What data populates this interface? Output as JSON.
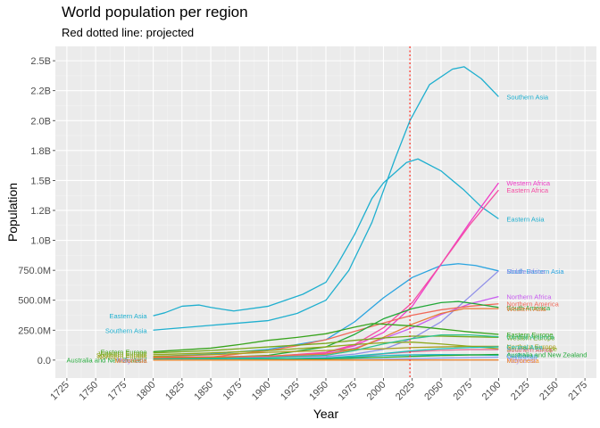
{
  "chart_data": {
    "type": "line",
    "title": "World population per region",
    "subtitle": "Red dotted line: projected",
    "xlabel": "Year",
    "ylabel": "Population",
    "xlim": [
      1715,
      2185
    ],
    "ylim": [
      -150000000,
      2620000000
    ],
    "x_ticks": [
      1725,
      1750,
      1775,
      1800,
      1825,
      1850,
      1875,
      1900,
      1925,
      1950,
      1975,
      2000,
      2025,
      2050,
      2075,
      2100,
      2125,
      2150,
      2175
    ],
    "y_ticks": [
      0,
      250000000,
      500000000,
      750000000,
      1000000000,
      1250000000,
      1500000000,
      1750000000,
      2000000000,
      2250000000,
      2500000000
    ],
    "y_tick_labels": [
      "0.0",
      "250.0M",
      "500.0M",
      "750.0M",
      "1.0B",
      "1.2B",
      "1.5B",
      "1.8B",
      "2.0B",
      "2.2B",
      "2.5B"
    ],
    "projection_line_year": 2023,
    "projection_line_color": "#FF3B30",
    "grid": true,
    "legend": "none",
    "series": [
      {
        "name": "Southern Asia",
        "color": "#1FAFCF",
        "start_label": "Southern Asia",
        "end_label": "Southern Asia",
        "x": [
          1800,
          1850,
          1900,
          1925,
          1950,
          1970,
          1990,
          2010,
          2023,
          2040,
          2060,
          2070,
          2085,
          2100
        ],
        "values": [
          250000000,
          290000000,
          330000000,
          390000000,
          500000000,
          750000000,
          1150000000,
          1680000000,
          2000000000,
          2300000000,
          2430000000,
          2450000000,
          2350000000,
          2200000000
        ]
      },
      {
        "name": "Eastern Asia",
        "color": "#1FAFCF",
        "start_label": "Eastern Asia",
        "end_label": "Eastern Asia",
        "x": [
          1800,
          1810,
          1825,
          1840,
          1850,
          1870,
          1900,
          1930,
          1950,
          1960,
          1975,
          1990,
          2000,
          2020,
          2030,
          2050,
          2070,
          2085,
          2100
        ],
        "values": [
          370000000,
          395000000,
          450000000,
          460000000,
          440000000,
          410000000,
          450000000,
          550000000,
          650000000,
          800000000,
          1050000000,
          1350000000,
          1480000000,
          1650000000,
          1680000000,
          1580000000,
          1420000000,
          1280000000,
          1180000000
        ]
      },
      {
        "name": "South-Eastern Asia",
        "color": "#2AA4E0",
        "start_label": "",
        "end_label": "South-Eastern Asia",
        "x": [
          1800,
          1850,
          1900,
          1950,
          1975,
          2000,
          2025,
          2050,
          2065,
          2080,
          2100
        ],
        "values": [
          30000000,
          50000000,
          90000000,
          170000000,
          320000000,
          520000000,
          690000000,
          790000000,
          805000000,
          790000000,
          745000000
        ]
      },
      {
        "name": "Middle Africa",
        "color": "#8F8FE8",
        "start_label": "",
        "end_label": "Middle Africa",
        "x": [
          1800,
          1900,
          1950,
          1975,
          2000,
          2025,
          2050,
          2075,
          2100
        ],
        "values": [
          20000000,
          25000000,
          30000000,
          50000000,
          90000000,
          180000000,
          320000000,
          530000000,
          745000000
        ]
      },
      {
        "name": "Western Africa",
        "color": "#F03CC8",
        "start_label": "",
        "end_label": "Western Africa",
        "x": [
          1800,
          1900,
          1950,
          1975,
          2000,
          2025,
          2050,
          2075,
          2100
        ],
        "values": [
          25000000,
          30000000,
          60000000,
          120000000,
          230000000,
          450000000,
          800000000,
          1150000000,
          1480000000
        ]
      },
      {
        "name": "Eastern Africa",
        "color": "#F54EA4",
        "start_label": "",
        "end_label": "Eastern Africa",
        "x": [
          1800,
          1900,
          1950,
          1975,
          2000,
          2025,
          2050,
          2075,
          2100
        ],
        "values": [
          20000000,
          30000000,
          65000000,
          130000000,
          270000000,
          480000000,
          800000000,
          1130000000,
          1420000000
        ]
      },
      {
        "name": "Northern Africa",
        "color": "#C85CF0",
        "start_label": "",
        "end_label": "Northern Africa",
        "x": [
          1800,
          1900,
          1950,
          1975,
          2000,
          2025,
          2050,
          2075,
          2100
        ],
        "values": [
          10000000,
          25000000,
          50000000,
          100000000,
          180000000,
          270000000,
          380000000,
          470000000,
          530000000
        ]
      },
      {
        "name": "Northern America",
        "color": "#F06A5A",
        "start_label": "",
        "end_label": "Northern America",
        "x": [
          1800,
          1850,
          1900,
          1925,
          1950,
          1975,
          2000,
          2025,
          2050,
          2075,
          2100
        ],
        "values": [
          7000000,
          25000000,
          80000000,
          120000000,
          170000000,
          240000000,
          310000000,
          375000000,
          420000000,
          450000000,
          470000000
        ]
      },
      {
        "name": "South America",
        "color": "#22A838",
        "start_label": "",
        "end_label": "South America",
        "x": [
          1800,
          1850,
          1900,
          1950,
          1975,
          2000,
          2025,
          2050,
          2065,
          2080,
          2100
        ],
        "values": [
          10000000,
          20000000,
          40000000,
          110000000,
          215000000,
          345000000,
          430000000,
          480000000,
          490000000,
          470000000,
          440000000
        ]
      },
      {
        "name": "Western Asia",
        "color": "#E87A36",
        "start_label": "",
        "end_label": "Western Asia",
        "x": [
          1800,
          1850,
          1900,
          1950,
          1975,
          2000,
          2025,
          2050,
          2070,
          2100
        ],
        "values": [
          20000000,
          25000000,
          35000000,
          50000000,
          90000000,
          190000000,
          300000000,
          390000000,
          430000000,
          430000000
        ]
      },
      {
        "name": "Eastern Europe",
        "color": "#38A41C",
        "start_label": "Eastern Europe",
        "end_label": "Eastern Europe",
        "x": [
          1800,
          1850,
          1875,
          1900,
          1925,
          1950,
          1975,
          1990,
          2000,
          2025,
          2050,
          2075,
          2100
        ],
        "values": [
          70000000,
          100000000,
          130000000,
          165000000,
          190000000,
          220000000,
          275000000,
          305000000,
          300000000,
          285000000,
          260000000,
          235000000,
          215000000
        ]
      },
      {
        "name": "Western Europe",
        "color": "#78A81C",
        "start_label": "Western Europe",
        "end_label": "Western Europe",
        "x": [
          1800,
          1850,
          1900,
          1950,
          1975,
          2000,
          2025,
          2050,
          2075,
          2100
        ],
        "values": [
          60000000,
          80000000,
          110000000,
          140000000,
          165000000,
          185000000,
          200000000,
          200000000,
          195000000,
          190000000
        ]
      },
      {
        "name": "Northern Europe",
        "color": "#A89E1C",
        "start_label": "Northern Europe",
        "end_label": "Northern Europe",
        "x": [
          1800,
          1850,
          1900,
          1950,
          1975,
          2000,
          2025,
          2050,
          2075,
          2100
        ],
        "values": [
          30000000,
          45000000,
          65000000,
          80000000,
          90000000,
          95000000,
          105000000,
          110000000,
          115000000,
          115000000
        ]
      },
      {
        "name": "Southern Europe",
        "color": "#8EA81C",
        "start_label": "Southern Europe",
        "end_label": "Southern Europe",
        "x": [
          1800,
          1850,
          1900,
          1950,
          1975,
          2000,
          2025,
          2050,
          2075,
          2100
        ],
        "values": [
          45000000,
          60000000,
          80000000,
          110000000,
          130000000,
          145000000,
          150000000,
          135000000,
          115000000,
          95000000
        ]
      },
      {
        "name": "Central America",
        "color": "#2EC28E",
        "start_label": "",
        "end_label": "Central America",
        "x": [
          1800,
          1900,
          1950,
          1975,
          2000,
          2025,
          2050,
          2075,
          2100
        ],
        "values": [
          6000000,
          20000000,
          40000000,
          80000000,
          135000000,
          180000000,
          210000000,
          210000000,
          195000000
        ]
      },
      {
        "name": "Southern Africa",
        "color": "#E26C94",
        "start_label": "",
        "end_label": "Southern Africa",
        "x": [
          1800,
          1900,
          1950,
          1975,
          2000,
          2025,
          2050,
          2075,
          2100
        ],
        "values": [
          2000000,
          6000000,
          17000000,
          30000000,
          52000000,
          70000000,
          82000000,
          88000000,
          88000000
        ]
      },
      {
        "name": "Central Asia",
        "color": "#1FC0B8",
        "start_label": "",
        "end_label": "Central Asia",
        "x": [
          1800,
          1900,
          1950,
          1975,
          2000,
          2025,
          2050,
          2075,
          2100
        ],
        "values": [
          5000000,
          10000000,
          18000000,
          35000000,
          55000000,
          78000000,
          95000000,
          105000000,
          110000000
        ]
      },
      {
        "name": "Caribbean",
        "color": "#1FB6C8",
        "start_label": "",
        "end_label": "Caribbean",
        "x": [
          1800,
          1900,
          1950,
          1975,
          2000,
          2025,
          2050,
          2075,
          2100
        ],
        "values": [
          2000000,
          6000000,
          17000000,
          27000000,
          38000000,
          44000000,
          46000000,
          44000000,
          40000000
        ]
      },
      {
        "name": "Australia and New Zealand",
        "color": "#22A838",
        "start_label": "Australia and New Zealand",
        "end_label": "Australia and New Zealand",
        "x": [
          1800,
          1900,
          1950,
          1975,
          2000,
          2025,
          2050,
          2075,
          2100
        ],
        "values": [
          1000000,
          4000000,
          10000000,
          17000000,
          23000000,
          31000000,
          38000000,
          43000000,
          47000000
        ]
      },
      {
        "name": "Melanesia",
        "color": "#8CA0F4",
        "start_label": "Melanesia",
        "end_label": "Melanesia",
        "x": [
          1800,
          1900,
          1950,
          1975,
          2000,
          2025,
          2050,
          2075,
          2100
        ],
        "values": [
          1000000,
          1500000,
          2500000,
          4000000,
          7000000,
          12000000,
          17000000,
          21000000,
          24000000
        ]
      },
      {
        "name": "Polynesia",
        "color": "#B090F4",
        "start_label": "Polynesia",
        "end_label": "Polynesia",
        "x": [
          1800,
          1900,
          1950,
          2000,
          2050,
          2100
        ],
        "values": [
          200000,
          300000,
          500000,
          600000,
          700000,
          700000
        ]
      },
      {
        "name": "Micronesia",
        "color": "#F28A1C",
        "start_label": "Micronesia",
        "end_label": "Micronesia",
        "x": [
          1800,
          1900,
          1950,
          2000,
          2050,
          2100
        ],
        "values": [
          150000,
          200000,
          250000,
          500000,
          600000,
          650000
        ]
      }
    ]
  }
}
